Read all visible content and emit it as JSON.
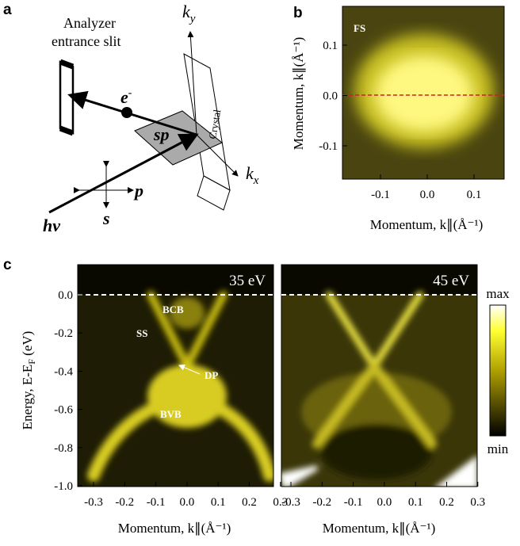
{
  "panel_a": {
    "label": "a",
    "analyzer": [
      "Analyzer",
      "entrance slit"
    ],
    "electron": {
      "base": "e",
      "sup": "-"
    },
    "ky": {
      "base": "k",
      "sub": "y"
    },
    "kx": {
      "base": "k",
      "sub": "x"
    },
    "sp": "sp",
    "crystal": "Crystal",
    "p": "p",
    "s": "s",
    "hv": "hv"
  },
  "panel_b": {
    "label": "b",
    "map_label": "FS",
    "yticks": [
      "0.1",
      "0.0",
      "-0.1"
    ],
    "xticks": [
      "-0.1",
      "0.0",
      "0.1"
    ],
    "xlabel": "Momentum, k∥(Å⁻¹)",
    "ylabel": "Momentum, k∥(Å⁻¹)"
  },
  "panel_c": {
    "label": "c",
    "photon_energies": [
      "35 eV",
      "45 eV"
    ],
    "annotations": [
      "BCB",
      "SS",
      "DP",
      "BVB"
    ],
    "yticks": [
      "0.0",
      "-0.2",
      "-0.4",
      "-0.6",
      "-0.8",
      "-1.0"
    ],
    "xticks": [
      "-0.3",
      "-0.2",
      "-0.1",
      "0.0",
      "0.1",
      "0.2",
      "0.3"
    ],
    "xlabel": "Momentum, k∥(Å⁻¹)",
    "ylabel": {
      "base": "Energy, E-E",
      "sub": "F",
      "tail": " (eV)"
    },
    "colorbar": [
      "max",
      "min"
    ]
  }
}
